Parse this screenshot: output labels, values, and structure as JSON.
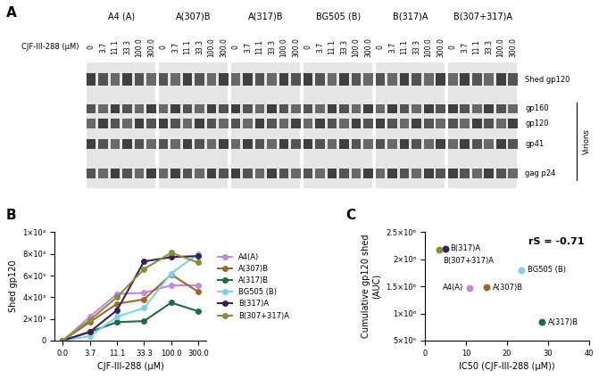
{
  "panel_labels": [
    "A",
    "B",
    "C"
  ],
  "blot": {
    "groups": [
      "A4 (A)",
      "A(307)B",
      "A(317)B",
      "BG505 (B)",
      "B(317)A",
      "B(307+317)A"
    ],
    "lane_axis_label": "CJF-III-288 (μM)",
    "lanes": [
      "0",
      "3.7",
      "11.1",
      "33.3",
      "100.0",
      "300.0"
    ],
    "bands": [
      "Shed gp120",
      "gp160",
      "gp120",
      "gp41",
      "gag p24"
    ],
    "bracket": "Virions"
  },
  "chart_data": [
    {
      "type": "line",
      "xlabel": "CJF-III-288 (μM)",
      "ylabel": "Shed gp120",
      "categories": [
        "0.0",
        "3.7",
        "11.1",
        "33.3",
        "100.0",
        "300.0"
      ],
      "ylim": [
        0,
        10000
      ],
      "yticks": [
        0,
        {
          "value": 2000,
          "label": "2×10³"
        },
        {
          "value": 4000,
          "label": "4×10³"
        },
        {
          "value": 6000,
          "label": "6×10³"
        },
        {
          "value": 8000,
          "label": "8×10³"
        },
        {
          "value": 10000,
          "label": "1×10⁴"
        }
      ],
      "legend": "right",
      "marker": "circle",
      "series": [
        {
          "name": "A4(A)",
          "color": "#c48ad8",
          "values": [
            0,
            2200,
            4300,
            4400,
            5100,
            5100
          ]
        },
        {
          "name": "A(307)B",
          "color": "#a0672d",
          "values": [
            0,
            1700,
            3400,
            3800,
            6100,
            4500
          ]
        },
        {
          "name": "A(317)B",
          "color": "#1f6b45",
          "values": [
            0,
            800,
            1700,
            1800,
            3500,
            2700
          ]
        },
        {
          "name": "BG505 (B)",
          "color": "#7fcfe6",
          "values": [
            0,
            400,
            2200,
            3000,
            6200,
            8000
          ]
        },
        {
          "name": "B(317)A",
          "color": "#3b1f5a",
          "values": [
            0,
            800,
            2800,
            7300,
            7700,
            7800
          ]
        },
        {
          "name": "B(307+317)A",
          "color": "#8c8c3c",
          "values": [
            0,
            1900,
            4000,
            6600,
            8100,
            7200
          ]
        }
      ]
    },
    {
      "type": "scatter",
      "xlabel": "IC50 (CJF-III-288 (μM))",
      "ylabel": "Cumulative gp120 shed\n(AUC)",
      "annotations": [
        "rS = -0.71"
      ],
      "xlim": [
        0,
        40
      ],
      "xticks": [
        0,
        10,
        20,
        30,
        40
      ],
      "ylim": [
        500000,
        2500000
      ],
      "yticks": [
        {
          "value": 500000,
          "label": "5×10⁵"
        },
        {
          "value": 1000000,
          "label": "1×10⁶"
        },
        {
          "value": 1500000,
          "label": "1.5×10⁶"
        },
        {
          "value": 2000000,
          "label": "2×10⁶"
        },
        {
          "value": 2500000,
          "label": "2.5×10⁶"
        }
      ],
      "marker": "circle",
      "series": [
        {
          "name": "B(317)A",
          "color": "#3b1f5a",
          "x": [
            5.0
          ],
          "values": [
            2200000
          ]
        },
        {
          "name": "B(307+317)A",
          "color": "#8c8c3c",
          "x": [
            3.5
          ],
          "values": [
            2170000
          ]
        },
        {
          "name": "BG505 (B)",
          "color": "#7fcfe6",
          "x": [
            23.5
          ],
          "values": [
            1800000
          ]
        },
        {
          "name": "A4(A)",
          "color": "#c48ad8",
          "x": [
            11.0
          ],
          "values": [
            1470000
          ]
        },
        {
          "name": "A(307)B",
          "color": "#a0672d",
          "x": [
            15.0
          ],
          "values": [
            1480000
          ]
        },
        {
          "name": "A(317)B",
          "color": "#1f6b45",
          "x": [
            28.5
          ],
          "values": [
            840000
          ]
        }
      ]
    }
  ]
}
